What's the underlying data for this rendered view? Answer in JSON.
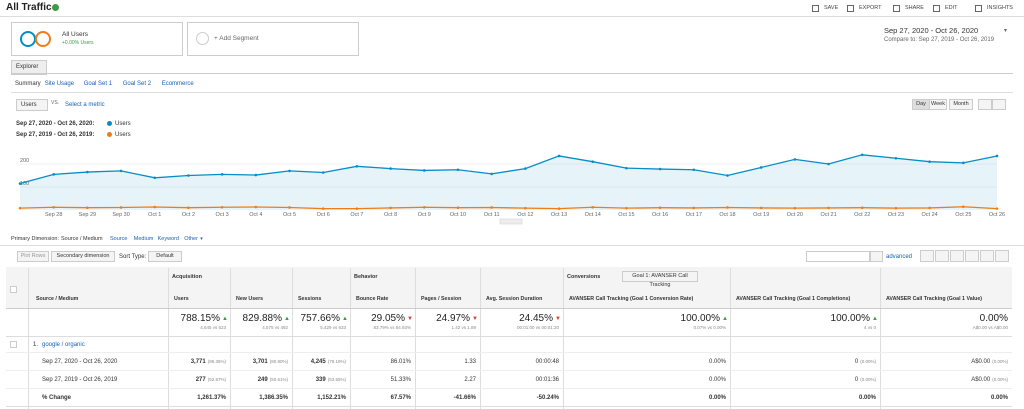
{
  "header": {
    "title": "All Traffic",
    "actions": [
      "SAVE",
      "EXPORT",
      "SHARE",
      "EDIT",
      "INSIGHTS"
    ]
  },
  "segments": {
    "name": "All Users",
    "change": "+0.00% Users",
    "add": "+ Add Segment"
  },
  "date_range": {
    "current": "Sep 27, 2020 - Oct 26, 2020",
    "compare": "Compare to: Sep 27, 2019 - Oct 26, 2019"
  },
  "tab": "Explorer",
  "subtabs": [
    "Summary",
    "Site Usage",
    "Goal Set 1",
    "Goal Set 2",
    "Ecommerce"
  ],
  "metric": {
    "selected": "Users",
    "vs": "VS.",
    "other": "Select a metric"
  },
  "intervals": [
    "Day",
    "Week",
    "Month"
  ],
  "chart": {
    "type": "line",
    "legend": [
      "Sep 27, 2020 - Oct 26, 2020:",
      "Sep 27, 2019 - Oct 26, 2019:"
    ],
    "categories": [
      null,
      "Sep 28",
      "Sep 29",
      "Sep 30",
      "Oct 1",
      "Oct 2",
      "Oct 3",
      "Oct 4",
      "Oct 5",
      "Oct 6",
      "Oct 7",
      "Oct 8",
      "Oct 9",
      "Oct 10",
      "Oct 11",
      "Oct 12",
      "Oct 13",
      "Oct 14",
      "Oct 15",
      "Oct 16",
      "Oct 17",
      "Oct 18",
      "Oct 19",
      "Oct 20",
      "Oct 21",
      "Oct 22",
      "Oct 23",
      "Oct 24",
      "Oct 25",
      "Oct 26"
    ],
    "series": [
      {
        "name": "Users",
        "color": "#058dc7",
        "values": [
          115,
          155,
          165,
          170,
          140,
          150,
          155,
          152,
          170,
          163,
          190,
          180,
          172,
          175,
          157,
          180,
          235,
          210,
          182,
          178,
          175,
          150,
          185,
          220,
          200,
          240,
          225,
          210,
          205,
          235
        ]
      },
      {
        "name": "Users",
        "color": "#ed7e17",
        "values": [
          8,
          12,
          10,
          11,
          13,
          10,
          12,
          13,
          11,
          6,
          6,
          9,
          12,
          10,
          11,
          8,
          6,
          12,
          8,
          10,
          9,
          11,
          9,
          8,
          9,
          10,
          8,
          9,
          14,
          6
        ]
      }
    ],
    "ylim": [
      0,
      300
    ],
    "yticks": [
      100,
      200
    ],
    "grid": true
  },
  "dimension": {
    "label": "Primary Dimension:",
    "options": [
      "Source / Medium",
      "Source",
      "Medium",
      "Keyword",
      "Other"
    ]
  },
  "toolbar": {
    "plot": "Plot Rows",
    "secondary": "Secondary dimension",
    "sort_label": "Sort Type:",
    "sort": "Default",
    "advanced": "advanced"
  },
  "table": {
    "groups": [
      "Acquisition",
      "Behavior",
      "Conversions"
    ],
    "goal": "Goal 1: AVANSER Call Tracking",
    "columns": [
      "Source / Medium",
      "Users",
      "New Users",
      "Sessions",
      "Bounce Rate",
      "Pages / Session",
      "Avg. Session Duration",
      "AVANSER Call Tracking (Goal 1 Conversion Rate)",
      "AVANSER Call Tracking (Goal 1 Completions)",
      "AVANSER Call Tracking (Goal 1 Value)"
    ],
    "totals": [
      {
        "value": "788.15%",
        "detail": "4,645 vs 523",
        "trend": "up"
      },
      {
        "value": "829.88%",
        "detail": "4,575 vs 492",
        "trend": "up"
      },
      {
        "value": "757.66%",
        "detail": "5,429 vs 633",
        "trend": "up"
      },
      {
        "value": "29.05%",
        "detail": "83.79% vs 64.93%",
        "trend": "down"
      },
      {
        "value": "24.97%",
        "detail": "1.42 vs 1.89",
        "trend": "down"
      },
      {
        "value": "24.45%",
        "detail": "00:01:00 vs 00:01:20",
        "trend": "down"
      },
      {
        "value": "100.00%",
        "detail": "0.07% vs 0.00%",
        "trend": "up"
      },
      {
        "value": "100.00%",
        "detail": "4 vs 0",
        "trend": "up"
      },
      {
        "value": "0.00%",
        "detail": "A$0.00 vs A$0.00"
      }
    ],
    "source": {
      "index": "1.",
      "name": "google / organic"
    },
    "rows": [
      {
        "label": "Sep 27, 2020 - Oct 26, 2020",
        "cells": [
          [
            "3,771",
            "(86.35%)"
          ],
          [
            "3,701",
            "(80.90%)"
          ],
          [
            "4,245",
            "(79.19%)"
          ],
          [
            "86.01%"
          ],
          [
            "1.33"
          ],
          [
            "00:00:48"
          ],
          [
            "0.00%"
          ],
          [
            "0",
            "(0.00%)"
          ],
          [
            "A$0.00",
            "(0.00%)"
          ]
        ]
      },
      {
        "label": "Sep 27, 2019 - Oct 26, 2019",
        "cells": [
          [
            "277",
            "(52.87%)"
          ],
          [
            "249",
            "(50.61%)"
          ],
          [
            "339",
            "(53.55%)"
          ],
          [
            "51.33%"
          ],
          [
            "2.27"
          ],
          [
            "00:01:36"
          ],
          [
            "0.00%"
          ],
          [
            "0",
            "(0.00%)"
          ],
          [
            "A$0.00",
            "(0.00%)"
          ]
        ]
      },
      {
        "label": "% Change",
        "cells": [
          [
            "1,261.37%"
          ],
          [
            "1,386.35%"
          ],
          [
            "1,152.21%"
          ],
          [
            "67.57%"
          ],
          [
            "-41.66%"
          ],
          [
            "-50.24%"
          ],
          [
            "0.00%"
          ],
          [
            "0.00%"
          ],
          [
            "0.00%"
          ]
        ]
      }
    ]
  }
}
